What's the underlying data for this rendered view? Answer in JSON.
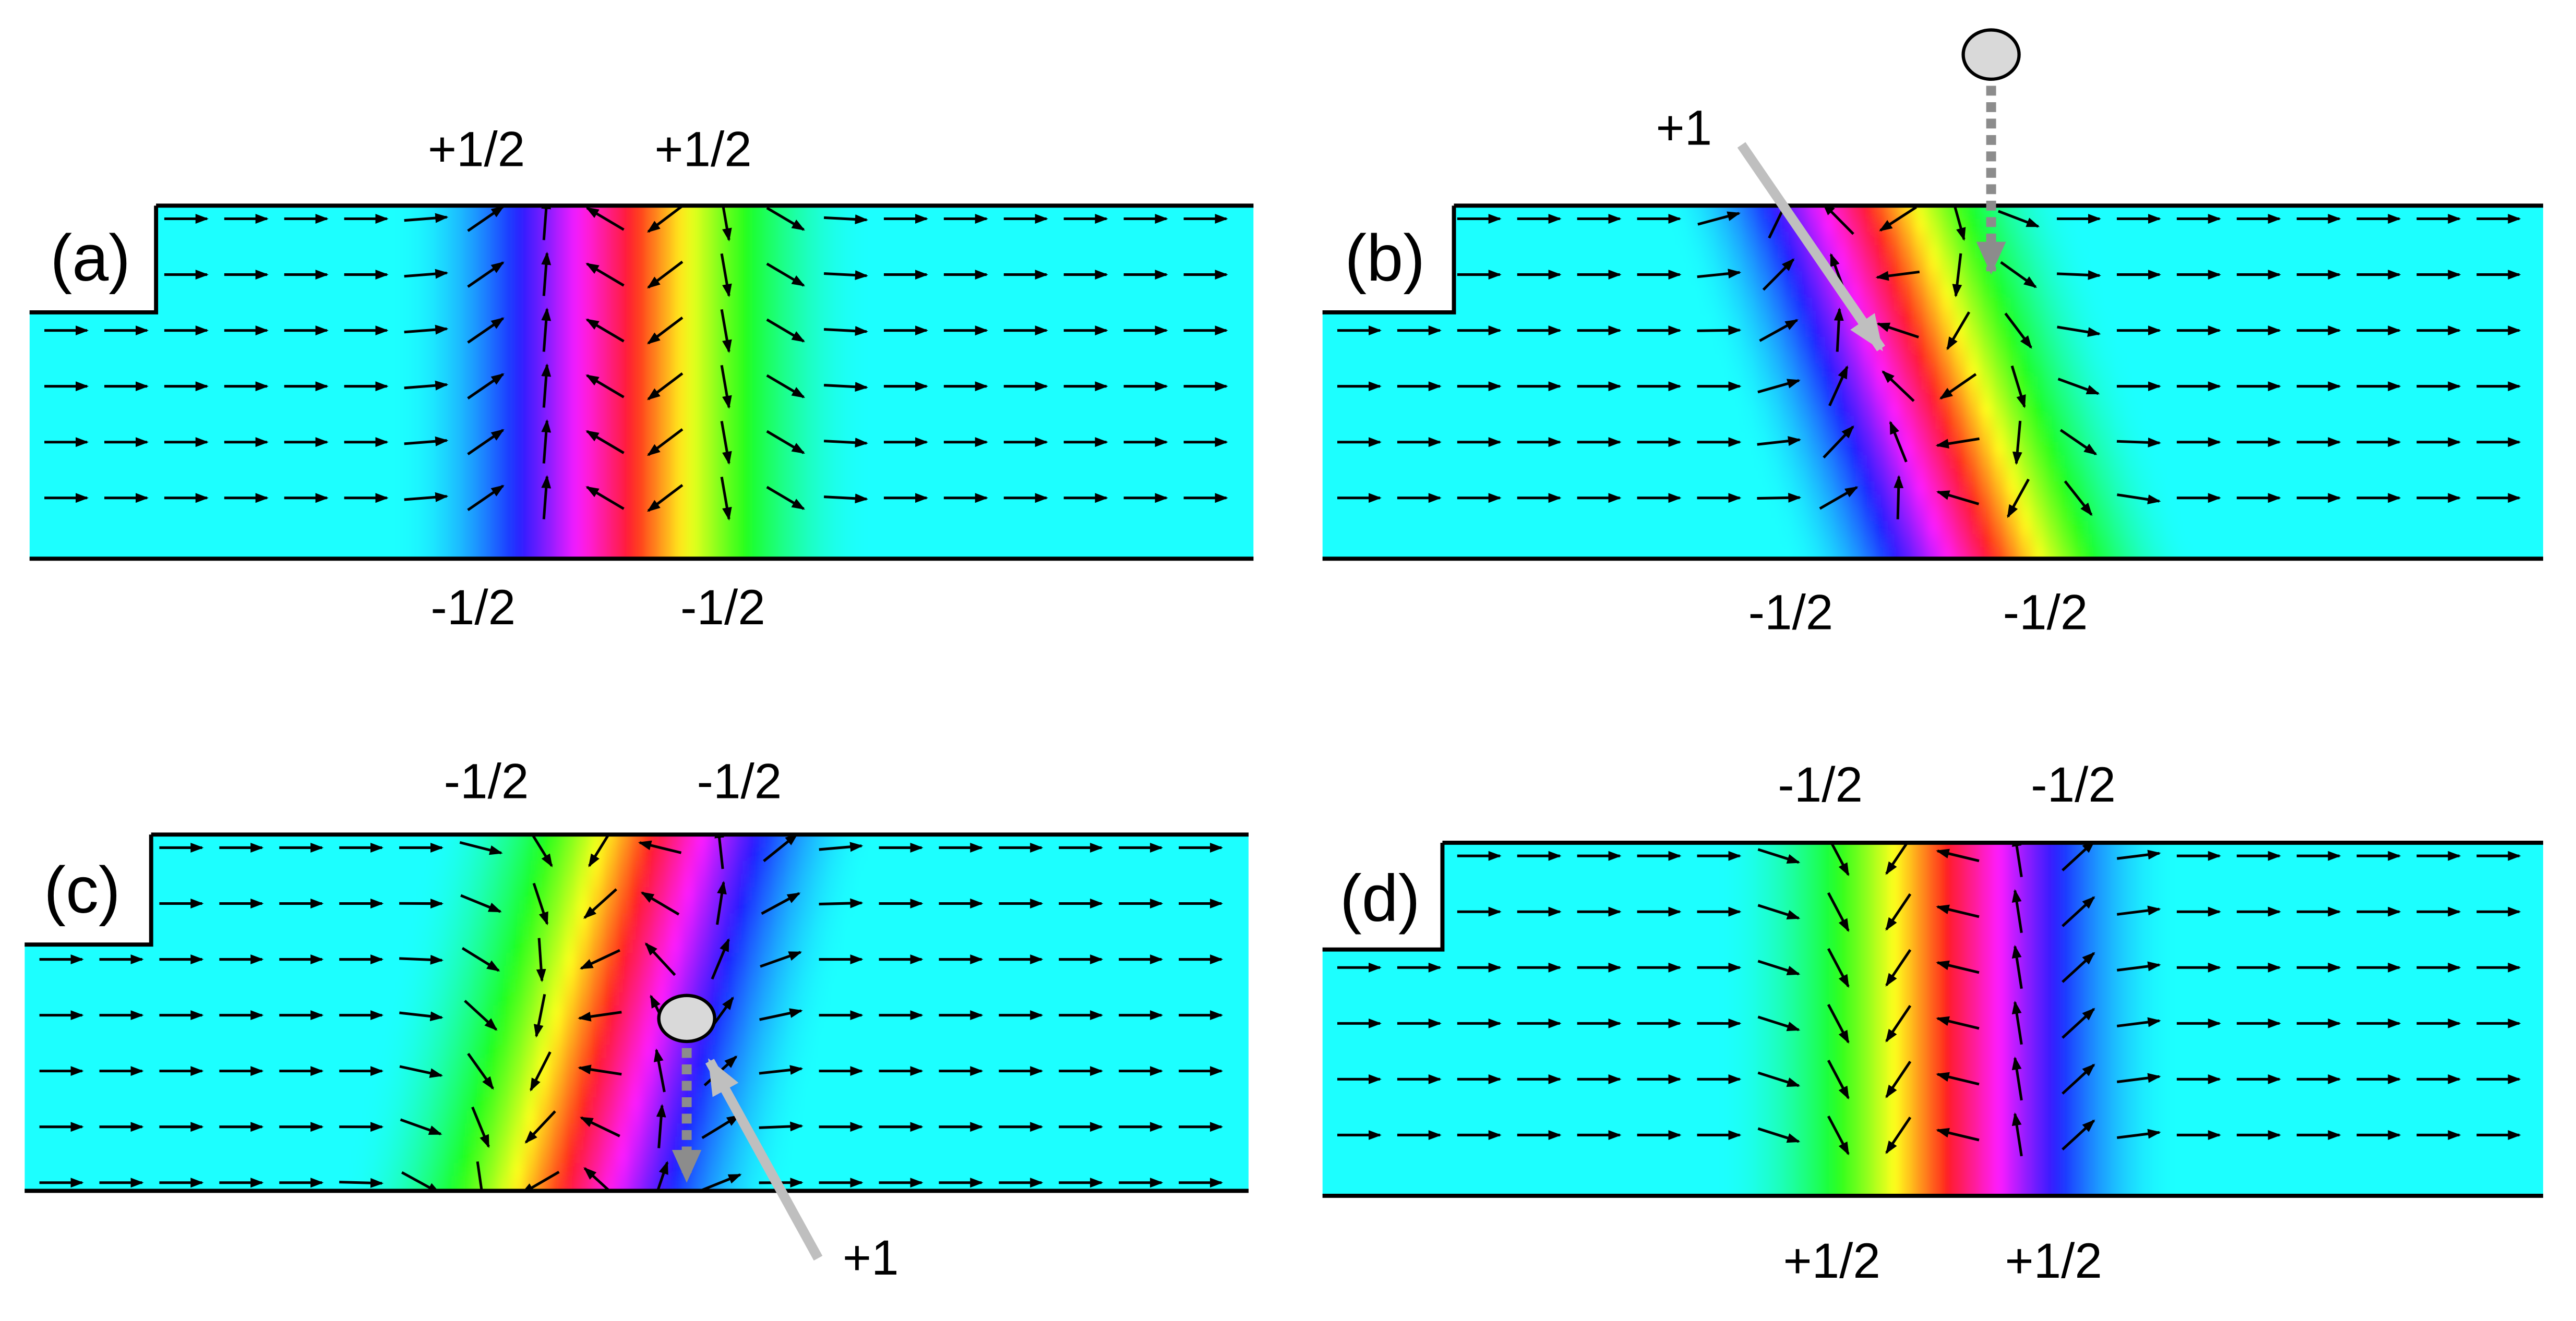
{
  "panels": [
    {
      "label": "(a)",
      "top_labels": [
        "+1/2",
        "+1/2"
      ],
      "bottom_labels": [
        "-1/2",
        "-1/2"
      ]
    },
    {
      "label": "(b)",
      "annotation": "+1",
      "bottom_labels": [
        "-1/2",
        "-1/2"
      ]
    },
    {
      "label": "(c)",
      "top_labels": [
        "-1/2",
        "-1/2"
      ],
      "annotation": "+1"
    },
    {
      "label": "(d)",
      "top_labels": [
        "-1/2",
        "-1/2"
      ],
      "bottom_labels": [
        "+1/2",
        "+1/2"
      ]
    }
  ]
}
